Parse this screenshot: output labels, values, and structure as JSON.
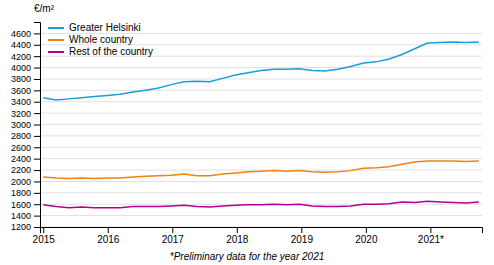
{
  "chart_data": {
    "type": "line",
    "y_label": "€/m²",
    "annotations": [
      {
        "text": "*Preliminary data for the year 2021"
      }
    ],
    "x": [
      2015,
      2015.198529,
      2015.397059,
      2015.595588,
      2015.794118,
      2015.992647,
      2016.191176,
      2016.389706,
      2016.588235,
      2016.786765,
      2016.985294,
      2017.183824,
      2017.382353,
      2017.580882,
      2017.779412,
      2017.977941,
      2018.176471,
      2018.375,
      2018.573529,
      2018.772059,
      2018.970588,
      2019.169118,
      2019.367647,
      2019.566176,
      2019.764706,
      2019.963235,
      2020.161765,
      2020.360294,
      2020.558824,
      2020.757353,
      2020.955882,
      2021.154412,
      2021.352941,
      2021.551471,
      2021.75
    ],
    "xlim": [
      2014.95,
      2021.8
    ],
    "xticks": [
      2015,
      2016,
      2017,
      2018,
      2019,
      2020,
      {
        "value": 2021,
        "label": "2021*"
      }
    ],
    "ylim": [
      1200,
      4800
    ],
    "yticks": [
      1200,
      1400,
      1600,
      1800,
      2000,
      2200,
      2400,
      2600,
      2800,
      3000,
      3200,
      3400,
      3600,
      3800,
      4000,
      4200,
      4400,
      4600
    ],
    "grid": true,
    "legend": "upper left",
    "series": [
      {
        "name": "Greater Helsinki",
        "color": "#1a9fd4",
        "values": [
          3470,
          3430,
          3450,
          3470,
          3490,
          3510,
          3530,
          3570,
          3600,
          3640,
          3700,
          3750,
          3760,
          3750,
          3810,
          3870,
          3910,
          3950,
          3970,
          3970,
          3980,
          3950,
          3940,
          3970,
          4020,
          4080,
          4100,
          4150,
          4230,
          4330,
          4430,
          4440,
          4450,
          4440,
          4450
        ]
      },
      {
        "name": "Whole country",
        "color": "#f0820f",
        "values": [
          2080,
          2060,
          2050,
          2060,
          2050,
          2060,
          2060,
          2080,
          2090,
          2100,
          2110,
          2130,
          2100,
          2100,
          2130,
          2150,
          2170,
          2180,
          2190,
          2180,
          2190,
          2170,
          2160,
          2170,
          2190,
          2230,
          2240,
          2260,
          2300,
          2340,
          2360,
          2360,
          2360,
          2350,
          2360
        ]
      },
      {
        "name": "Rest of the country",
        "color": "#b5008f",
        "values": [
          1590,
          1560,
          1540,
          1550,
          1540,
          1540,
          1540,
          1560,
          1560,
          1560,
          1570,
          1580,
          1560,
          1550,
          1570,
          1580,
          1590,
          1590,
          1600,
          1590,
          1600,
          1570,
          1560,
          1560,
          1570,
          1600,
          1600,
          1610,
          1640,
          1630,
          1650,
          1640,
          1630,
          1620,
          1640
        ]
      }
    ]
  }
}
